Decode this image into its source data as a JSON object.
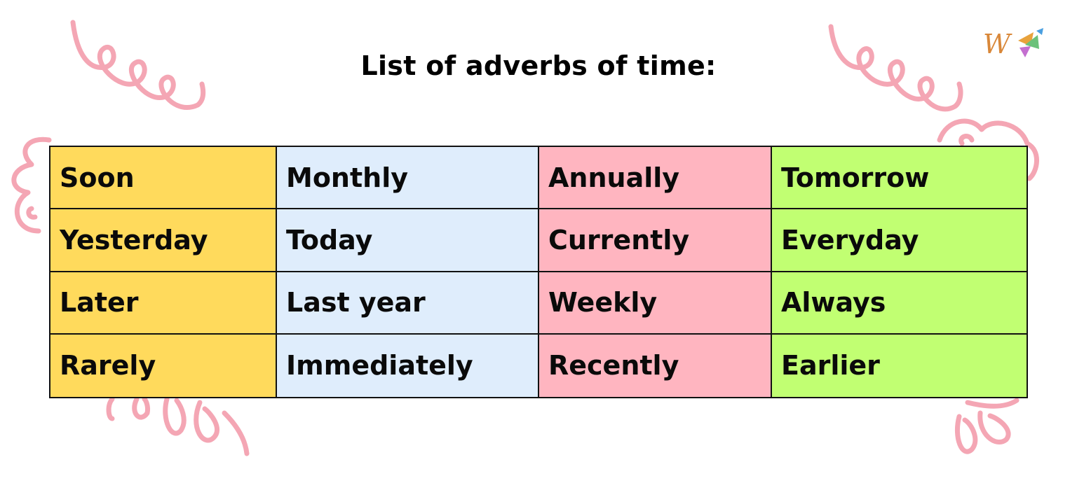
{
  "title": "List of adverbs of time:",
  "logo": {
    "letter": "W",
    "name": "logo-icon"
  },
  "colors": {
    "column_1": "#FFDA5C",
    "column_2": "#DFEDFC",
    "column_3": "#FFB5C0",
    "column_4": "#C1FF72",
    "decoration": "#F4A6B4"
  },
  "table": {
    "rows": [
      [
        "Soon",
        "Monthly",
        "Annually",
        "Tomorrow"
      ],
      [
        "Yesterday",
        "Today",
        "Currently",
        "Everyday"
      ],
      [
        "Later",
        "Last year",
        "Weekly",
        "Always"
      ],
      [
        "Rarely",
        "Immediately",
        "Recently",
        "Earlier"
      ]
    ]
  }
}
